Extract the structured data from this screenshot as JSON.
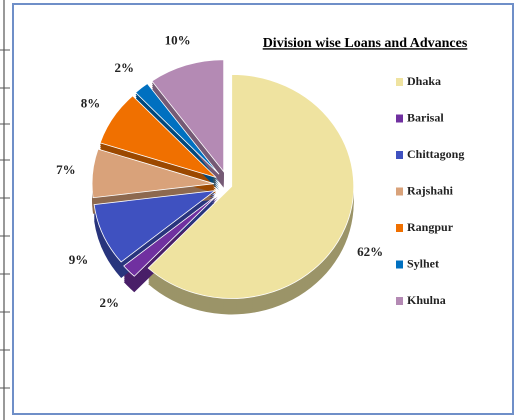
{
  "chart_data": {
    "type": "pie",
    "title": "Division wise Loans and Advances",
    "categories": [
      "Dhaka",
      "Barisal",
      "Chittagong",
      "Rajshahi",
      "Rangpur",
      "Sylhet",
      "Khulna"
    ],
    "values": [
      62,
      2,
      9,
      7,
      8,
      2,
      10
    ],
    "value_labels": [
      "62%",
      "2%",
      "9%",
      "7%",
      "8%",
      "2%",
      "10%"
    ],
    "colors": [
      "#efe3a0",
      "#7030a0",
      "#3f51c0",
      "#d9a27a",
      "#f07000",
      "#0070c0",
      "#b48ab4"
    ],
    "legend": "right"
  }
}
